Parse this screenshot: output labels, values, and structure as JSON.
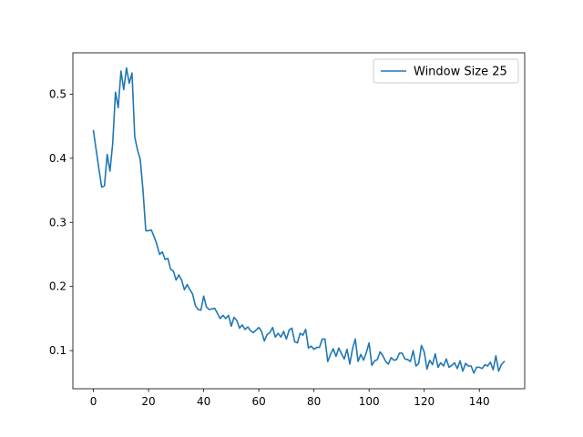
{
  "chart_data": {
    "type": "line",
    "title": "",
    "xlabel": "",
    "ylabel": "",
    "xlim": [
      -7.45,
      156.45
    ],
    "ylim": [
      0.0405,
      0.5645
    ],
    "x_ticks": [
      0,
      20,
      40,
      60,
      80,
      100,
      120,
      140
    ],
    "y_ticks": [
      0.1,
      0.2,
      0.3,
      0.4,
      0.5
    ],
    "x_tick_labels": [
      "0",
      "20",
      "40",
      "60",
      "80",
      "100",
      "120",
      "140"
    ],
    "y_tick_labels": [
      "0.1",
      "0.2",
      "0.3",
      "0.4",
      "0.5"
    ],
    "grid": false,
    "legend_position": "upper right",
    "series": [
      {
        "name": "Window Size 25",
        "color": "#1f77b4",
        "x": [
          0,
          1,
          2,
          3,
          4,
          5,
          6,
          7,
          8,
          9,
          10,
          11,
          12,
          13,
          14,
          15,
          16,
          17,
          18,
          19,
          20,
          21,
          22,
          23,
          24,
          25,
          26,
          27,
          28,
          29,
          30,
          31,
          32,
          33,
          34,
          35,
          36,
          37,
          38,
          39,
          40,
          41,
          42,
          43,
          44,
          45,
          46,
          47,
          48,
          49,
          50,
          51,
          52,
          53,
          54,
          55,
          56,
          57,
          58,
          59,
          60,
          61,
          62,
          63,
          64,
          65,
          66,
          67,
          68,
          69,
          70,
          71,
          72,
          73,
          74,
          75,
          76,
          77,
          78,
          79,
          80,
          81,
          82,
          83,
          84,
          85,
          86,
          87,
          88,
          89,
          90,
          91,
          92,
          93,
          94,
          95,
          96,
          97,
          98,
          99,
          100,
          101,
          102,
          103,
          104,
          105,
          106,
          107,
          108,
          109,
          110,
          111,
          112,
          113,
          114,
          115,
          116,
          117,
          118,
          119,
          120,
          121,
          122,
          123,
          124,
          125,
          126,
          127,
          128,
          129,
          130,
          131,
          132,
          133,
          134,
          135,
          136,
          137,
          138,
          139,
          140,
          141,
          142,
          143,
          144,
          145,
          146,
          147,
          148,
          149
        ],
        "y": [
          0.443,
          0.413,
          0.383,
          0.355,
          0.357,
          0.406,
          0.38,
          0.423,
          0.503,
          0.479,
          0.536,
          0.507,
          0.541,
          0.517,
          0.533,
          0.433,
          0.413,
          0.398,
          0.349,
          0.287,
          0.287,
          0.288,
          0.278,
          0.266,
          0.25,
          0.254,
          0.242,
          0.244,
          0.227,
          0.224,
          0.21,
          0.218,
          0.21,
          0.195,
          0.203,
          0.195,
          0.188,
          0.17,
          0.164,
          0.163,
          0.185,
          0.168,
          0.164,
          0.165,
          0.166,
          0.158,
          0.15,
          0.155,
          0.15,
          0.155,
          0.138,
          0.152,
          0.147,
          0.135,
          0.14,
          0.133,
          0.137,
          0.131,
          0.128,
          0.132,
          0.136,
          0.13,
          0.115,
          0.125,
          0.128,
          0.136,
          0.121,
          0.127,
          0.121,
          0.13,
          0.118,
          0.132,
          0.135,
          0.114,
          0.112,
          0.127,
          0.124,
          0.133,
          0.104,
          0.107,
          0.102,
          0.105,
          0.105,
          0.118,
          0.118,
          0.083,
          0.094,
          0.103,
          0.091,
          0.104,
          0.095,
          0.087,
          0.102,
          0.079,
          0.103,
          0.118,
          0.083,
          0.094,
          0.085,
          0.097,
          0.112,
          0.077,
          0.084,
          0.086,
          0.098,
          0.092,
          0.083,
          0.079,
          0.089,
          0.085,
          0.086,
          0.096,
          0.096,
          0.087,
          0.086,
          0.083,
          0.1,
          0.076,
          0.08,
          0.108,
          0.098,
          0.071,
          0.085,
          0.078,
          0.095,
          0.074,
          0.081,
          0.076,
          0.087,
          0.074,
          0.077,
          0.081,
          0.072,
          0.084,
          0.068,
          0.08,
          0.076,
          0.076,
          0.065,
          0.074,
          0.074,
          0.072,
          0.078,
          0.076,
          0.082,
          0.07,
          0.092,
          0.068,
          0.078,
          0.083
        ]
      }
    ]
  }
}
